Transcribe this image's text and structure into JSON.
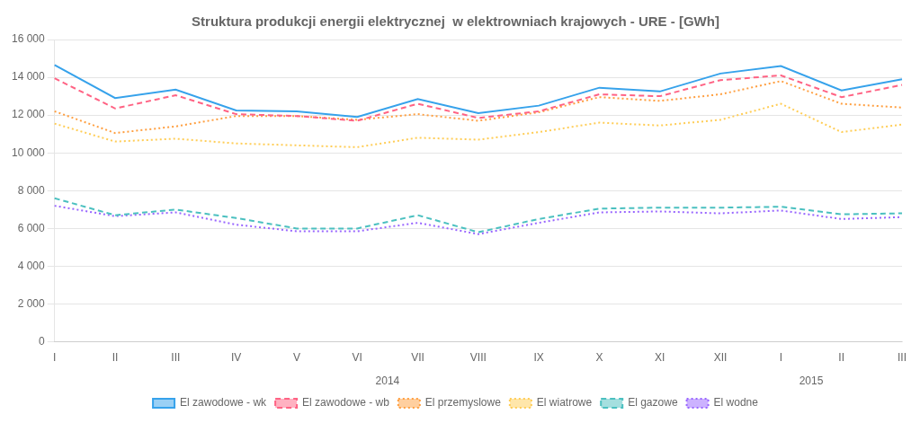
{
  "chart_data": {
    "type": "line",
    "title": "Struktura produkcji energii elektrycznej  w elektrowniach krajowych - URE - [GWh]",
    "categories": [
      "I",
      "II",
      "III",
      "IV",
      "V",
      "VI",
      "VII",
      "VIII",
      "IX",
      "X",
      "XI",
      "XII",
      "I",
      "II",
      "III"
    ],
    "series": [
      {
        "name": "El zawodowe - wk",
        "line_style": "solid",
        "values": [
          14650,
          12900,
          13350,
          12250,
          12200,
          11900,
          12850,
          12100,
          12500,
          13450,
          13250,
          14200,
          14600,
          13300,
          13900
        ]
      },
      {
        "name": "El zawodowe - wb",
        "line_style": "dashed",
        "values": [
          13950,
          12350,
          13050,
          12050,
          11950,
          11700,
          12600,
          11850,
          12200,
          13100,
          13000,
          13850,
          14100,
          12950,
          13600
        ]
      },
      {
        "name": "El przemyslowe",
        "line_style": "dotted",
        "values": [
          12200,
          11050,
          11400,
          11950,
          11950,
          11750,
          12050,
          11700,
          12150,
          12950,
          12750,
          13100,
          13800,
          12600,
          12400
        ]
      },
      {
        "name": "El wiatrowe",
        "line_style": "dotted",
        "values": [
          11550,
          10600,
          10750,
          10500,
          10400,
          10300,
          10800,
          10700,
          11100,
          11600,
          11450,
          11750,
          12600,
          11100,
          11500
        ]
      },
      {
        "name": "El gazowe",
        "line_style": "dashed",
        "values": [
          7600,
          6700,
          7000,
          6550,
          6000,
          6000,
          6700,
          5800,
          6500,
          7050,
          7100,
          7100,
          7150,
          6750,
          6800
        ]
      },
      {
        "name": "El wodne",
        "line_style": "dotted",
        "values": [
          7200,
          6650,
          6850,
          6200,
          5850,
          5850,
          6300,
          5700,
          6300,
          6850,
          6900,
          6800,
          6950,
          6500,
          6600
        ]
      }
    ],
    "ylim": [
      0,
      16000
    ],
    "yticks": [
      0,
      {
        "value": 2000,
        "label": "2 000"
      },
      {
        "value": 4000,
        "label": "4 000"
      },
      {
        "value": 6000,
        "label": "6 000"
      },
      {
        "value": 8000,
        "label": "8 000"
      },
      {
        "value": 10000,
        "label": "10 000"
      },
      {
        "value": 12000,
        "label": "12 000"
      },
      {
        "value": 14000,
        "label": "14 000"
      },
      {
        "value": 16000,
        "label": "16 000"
      }
    ],
    "grid": true,
    "legend": "bottom",
    "annotations": [
      {
        "text": "2014",
        "x": 5.5
      },
      {
        "text": "2015",
        "x": 12.5
      }
    ]
  }
}
